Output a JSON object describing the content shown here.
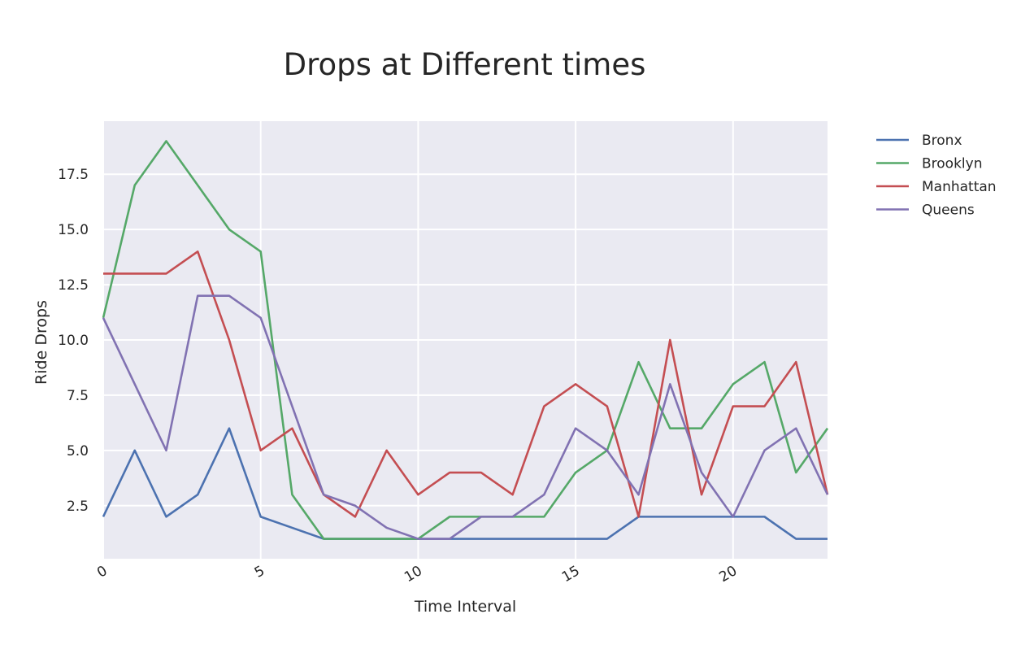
{
  "chart_data": {
    "type": "line",
    "title": "Drops at Different times",
    "xlabel": "Time Interval",
    "ylabel": "Ride Drops",
    "xlim": [
      0,
      23
    ],
    "ylim": [
      0.1,
      19.9
    ],
    "xticks": [
      0,
      5,
      10,
      15,
      20
    ],
    "xtick_labels": [
      "0",
      "5",
      "10",
      "15",
      "20"
    ],
    "yticks": [
      2.5,
      5.0,
      7.5,
      10.0,
      12.5,
      15.0,
      17.5
    ],
    "ytick_labels": [
      "2.5",
      "5.0",
      "7.5",
      "10.0",
      "12.5",
      "15.0",
      "17.5"
    ],
    "grid": true,
    "legend_position": "outside-top-right",
    "x": [
      0,
      1,
      2,
      3,
      4,
      5,
      6,
      7,
      8,
      9,
      10,
      11,
      12,
      13,
      14,
      15,
      16,
      17,
      18,
      19,
      20,
      21,
      22,
      23
    ],
    "series": [
      {
        "name": "Bronx",
        "color": "#4C72B0",
        "values": [
          2,
          5,
          2,
          3,
          6,
          2,
          1.5,
          1,
          1,
          1,
          1,
          1,
          1,
          1,
          1,
          1,
          1,
          2,
          2,
          2,
          2,
          2,
          1,
          1
        ]
      },
      {
        "name": "Brooklyn",
        "color": "#55A868",
        "values": [
          11,
          17,
          19,
          17,
          15,
          14,
          3,
          1,
          1,
          1,
          1,
          2,
          2,
          2,
          2,
          4,
          5,
          9,
          6,
          6,
          8,
          9,
          4,
          6
        ]
      },
      {
        "name": "Manhattan",
        "color": "#C44E52",
        "values": [
          13,
          13,
          13,
          14,
          10,
          5,
          6,
          3,
          2,
          5,
          3,
          4,
          4,
          3,
          7,
          8,
          7,
          2,
          10,
          3,
          7,
          7,
          9,
          3
        ]
      },
      {
        "name": "Queens",
        "color": "#8172B2",
        "values": [
          11,
          8,
          5,
          12,
          12,
          11,
          7,
          3,
          2.5,
          1.5,
          1,
          1,
          2,
          2,
          3,
          6,
          5,
          3,
          8,
          4,
          2,
          5,
          6,
          3
        ]
      }
    ]
  }
}
